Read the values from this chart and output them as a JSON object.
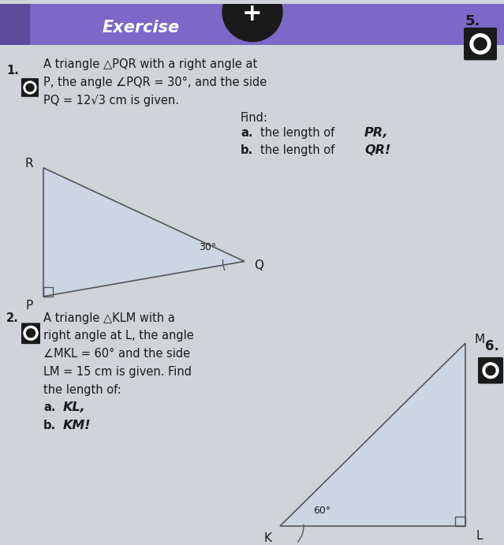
{
  "bg_color": "#d0d4d8",
  "header_bg": "#7b68c8",
  "header_dark": "#5a4a9a",
  "header_text": "Exercise",
  "header_text_color": "#ffffff",
  "tri1_fill": "#cdd5e5",
  "tri1_edge": "#555555",
  "tri2_fill": "#cdd5e5",
  "tri2_edge": "#555555",
  "text_color": "#1a1a1a",
  "text_color2": "#333333",
  "number5": "5.",
  "number6": "6.",
  "line1_1": "A triangle △PQR with a right angle at",
  "line1_2": "P, the angle ∠PQR = 30°, and the side",
  "line1_3": "PQ = 12√3 cm is given.",
  "line1_find": "Find:",
  "line1_a1": "a.",
  "line1_a2": "the length of ",
  "line1_a3": "PR,",
  "line1_b1": "b.",
  "line1_b2": "the length of ",
  "line1_b3": "QR!",
  "line2_1": "A triangle △KLM with a",
  "line2_2": "right angle at L, the angle",
  "line2_3": "∠MKL = 60° and the side",
  "line2_4": "LM = 15 cm is given. Find",
  "line2_5": "the length of:",
  "line2_a1": "a.",
  "line2_a2": "KL,",
  "line2_b1": "b.",
  "line2_b2": "KM!"
}
